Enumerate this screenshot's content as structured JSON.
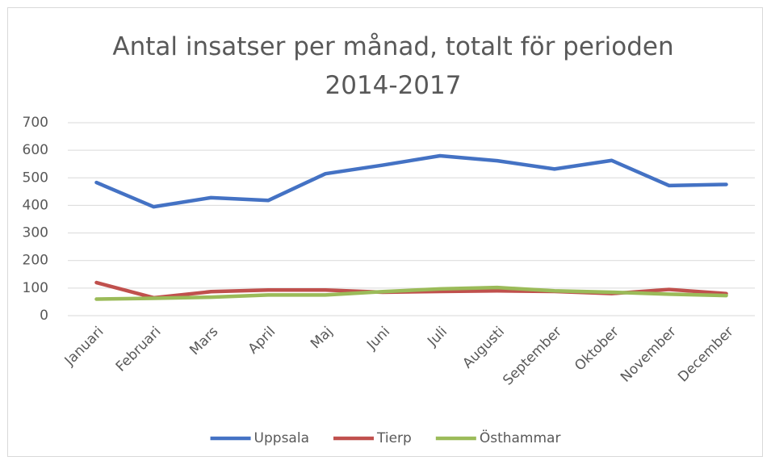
{
  "chart_data": {
    "type": "line",
    "title": "Antal insatser per månad, totalt för perioden 2014-2017",
    "categories": [
      "Januari",
      "Februari",
      "Mars",
      "April",
      "Maj",
      "Juni",
      "Juli",
      "Augusti",
      "September",
      "Oktober",
      "November",
      "December"
    ],
    "series": [
      {
        "name": "Uppsala",
        "color": "#4472c4",
        "values": [
          483,
          395,
          428,
          418,
          515,
          546,
          580,
          562,
          532,
          563,
          472,
          476
        ]
      },
      {
        "name": "Tierp",
        "color": "#c0504d",
        "values": [
          120,
          65,
          87,
          93,
          93,
          85,
          88,
          90,
          88,
          80,
          95,
          80
        ]
      },
      {
        "name": "Östhammar",
        "color": "#9bbb59",
        "values": [
          60,
          63,
          67,
          75,
          75,
          87,
          97,
          102,
          90,
          85,
          78,
          73
        ]
      }
    ],
    "ylim": [
      0,
      700
    ],
    "yticks": [
      0,
      100,
      200,
      300,
      400,
      500,
      600,
      700
    ],
    "grid": true,
    "legend": "bottom"
  }
}
